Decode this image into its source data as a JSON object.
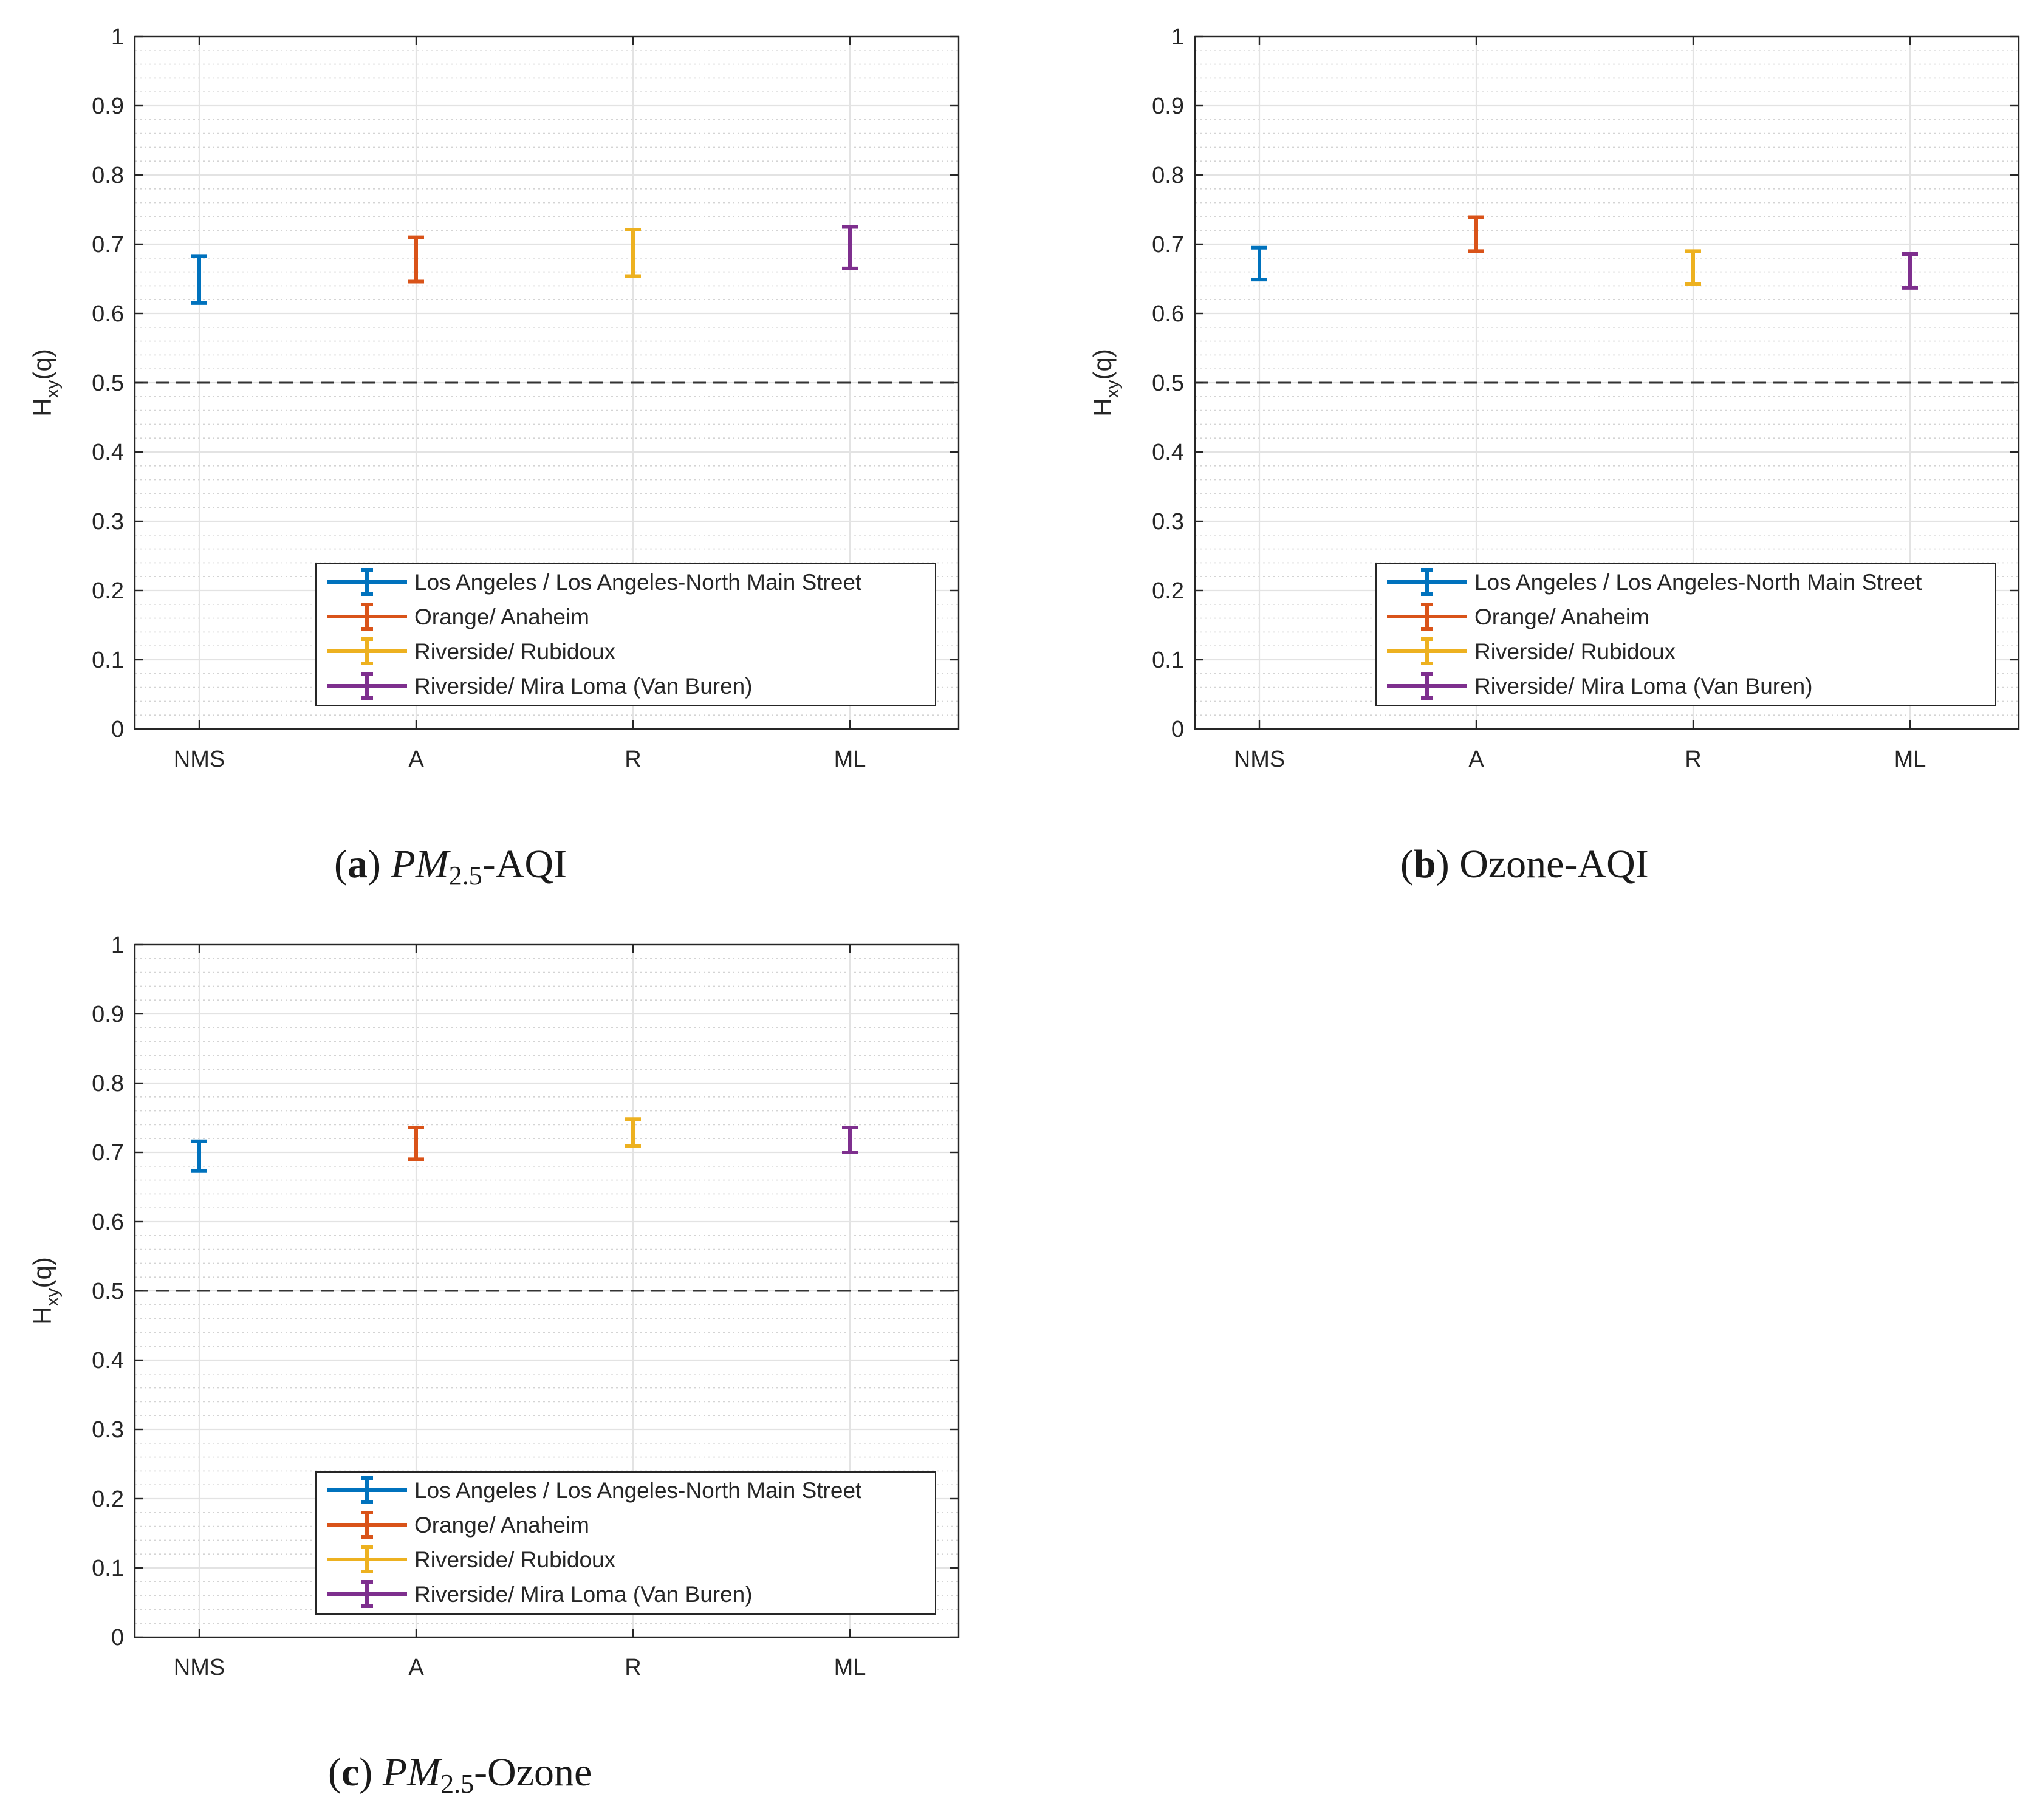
{
  "chart_data": [
    {
      "type": "errorbar",
      "panel": "a",
      "caption_label": "a",
      "caption_text_main": "PM",
      "caption_text_sub": "2.5",
      "caption_text_rest": "-AQI",
      "ylabel_main": "H",
      "ylabel_sub": "xy",
      "ylabel_rest": "(q)",
      "categories": [
        "NMS",
        "A",
        "R",
        "ML"
      ],
      "series": [
        {
          "name": "Los Angeles / Los Angeles-North Main Street",
          "category": "NMS",
          "low": 0.615,
          "high": 0.683,
          "color": "#0072BD"
        },
        {
          "name": "Orange/ Anaheim",
          "category": "A",
          "low": 0.646,
          "high": 0.71,
          "color": "#D95319"
        },
        {
          "name": "Riverside/ Rubidoux",
          "category": "R",
          "low": 0.654,
          "high": 0.721,
          "color": "#EDB120"
        },
        {
          "name": "Riverside/ Mira Loma (Van Buren)",
          "category": "ML",
          "low": 0.665,
          "high": 0.725,
          "color": "#7E2F8E"
        }
      ],
      "reference_line": 0.5,
      "ylim": [
        0,
        1
      ],
      "yticks": [
        "0",
        "0.1",
        "0.2",
        "0.3",
        "0.4",
        "0.5",
        "0.6",
        "0.7",
        "0.8",
        "0.9",
        "1"
      ],
      "grid": true,
      "legend_position": "bottom-right"
    },
    {
      "type": "errorbar",
      "panel": "b",
      "caption_label": "b",
      "caption_text_main": "Ozone-AQI",
      "caption_text_sub": "",
      "caption_text_rest": "",
      "ylabel_main": "H",
      "ylabel_sub": "xy",
      "ylabel_rest": "(q)",
      "categories": [
        "NMS",
        "A",
        "R",
        "ML"
      ],
      "series": [
        {
          "name": "Los Angeles / Los Angeles-North Main Street",
          "category": "NMS",
          "low": 0.649,
          "high": 0.695,
          "color": "#0072BD"
        },
        {
          "name": "Orange/ Anaheim",
          "category": "A",
          "low": 0.69,
          "high": 0.739,
          "color": "#D95319"
        },
        {
          "name": "Riverside/ Rubidoux",
          "category": "R",
          "low": 0.643,
          "high": 0.69,
          "color": "#EDB120"
        },
        {
          "name": "Riverside/ Mira Loma (Van Buren)",
          "category": "ML",
          "low": 0.637,
          "high": 0.686,
          "color": "#7E2F8E"
        }
      ],
      "reference_line": 0.5,
      "ylim": [
        0,
        1
      ],
      "yticks": [
        "0",
        "0.1",
        "0.2",
        "0.3",
        "0.4",
        "0.5",
        "0.6",
        "0.7",
        "0.8",
        "0.9",
        "1"
      ],
      "grid": true,
      "legend_position": "bottom-right"
    },
    {
      "type": "errorbar",
      "panel": "c",
      "caption_label": "c",
      "caption_text_main": "PM",
      "caption_text_sub": "2.5",
      "caption_text_rest": "-Ozone",
      "ylabel_main": "H",
      "ylabel_sub": "xy",
      "ylabel_rest": "(q)",
      "categories": [
        "NMS",
        "A",
        "R",
        "ML"
      ],
      "series": [
        {
          "name": "Los Angeles / Los Angeles-North Main Street",
          "category": "NMS",
          "low": 0.673,
          "high": 0.716,
          "color": "#0072BD"
        },
        {
          "name": "Orange/ Anaheim",
          "category": "A",
          "low": 0.69,
          "high": 0.736,
          "color": "#D95319"
        },
        {
          "name": "Riverside/ Rubidoux",
          "category": "R",
          "low": 0.709,
          "high": 0.748,
          "color": "#EDB120"
        },
        {
          "name": "Riverside/ Mira Loma (Van Buren)",
          "category": "ML",
          "low": 0.7,
          "high": 0.736,
          "color": "#7E2F8E"
        }
      ],
      "reference_line": 0.5,
      "ylim": [
        0,
        1
      ],
      "yticks": [
        "0",
        "0.1",
        "0.2",
        "0.3",
        "0.4",
        "0.5",
        "0.6",
        "0.7",
        "0.8",
        "0.9",
        "1"
      ],
      "grid": true,
      "legend_position": "bottom-right"
    }
  ]
}
